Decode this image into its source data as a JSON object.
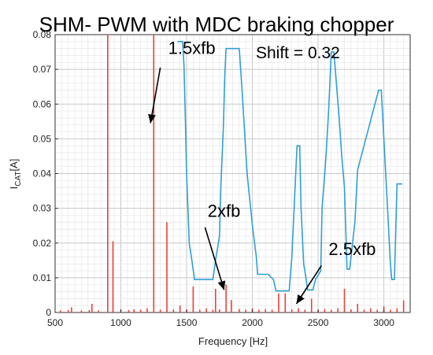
{
  "chart_data": {
    "type": "line",
    "title": "SHM- PWM with MDC braking chopper",
    "annotation_text": "Shift = 0.32",
    "xlabel": "Frequency [Hz]",
    "ylabel_main": "I",
    "ylabel_sub": "CAT",
    "ylabel_unit": "[A]",
    "xlim": [
      500,
      3200
    ],
    "ylim": [
      0,
      0.08
    ],
    "grid": true,
    "x_ticks": [
      500,
      1000,
      1500,
      2000,
      2500,
      3000
    ],
    "x_tick_labels": [
      "500",
      "1000",
      "1500",
      "2000",
      "2500",
      "3000"
    ],
    "y_ticks": [
      0,
      0.01,
      0.02,
      0.03,
      0.04,
      0.05,
      0.06,
      0.07,
      0.08
    ],
    "y_tick_labels": [
      "0",
      "0.01",
      "0.02",
      "0.03",
      "0.04",
      "0.05",
      "0.06",
      "0.07",
      "0.08"
    ],
    "colors": {
      "spectrum": "#e8413a",
      "limit": "#2f9fd6",
      "grid": "#d6d6d6",
      "arrow": "#000000"
    },
    "series": [
      {
        "kind": "spectrum_lines",
        "x": [
          540,
          600,
          625,
          700,
          760,
          780,
          830,
          900,
          940,
          1000,
          1060,
          1100,
          1150,
          1200,
          1250,
          1300,
          1350,
          1400,
          1450,
          1500,
          1550,
          1600,
          1650,
          1700,
          1720,
          1750,
          1800,
          1840,
          1900,
          1950,
          2000,
          2050,
          2100,
          2150,
          2200,
          2250,
          2300,
          2350,
          2400,
          2450,
          2500,
          2550,
          2600,
          2650,
          2700,
          2750,
          2800,
          2850,
          2900,
          2950,
          3000,
          3050,
          3100,
          3150
        ],
        "values": [
          0.0006,
          0.0007,
          0.0015,
          0.0006,
          0.0007,
          0.0025,
          0.0006,
          0.08,
          0.0205,
          0.0008,
          0.0007,
          0.0009,
          0.0008,
          0.0012,
          0.08,
          0.0008,
          0.026,
          0.0009,
          0.002,
          0.0009,
          0.0075,
          0.0008,
          0.0012,
          0.0008,
          0.0068,
          0.0009,
          0.008,
          0.0036,
          0.001,
          0.0008,
          0.0012,
          0.0008,
          0.001,
          0.0008,
          0.0055,
          0.0055,
          0.0009,
          0.0012,
          0.0008,
          0.004,
          0.0008,
          0.001,
          0.0008,
          0.0012,
          0.0068,
          0.0009,
          0.0025,
          0.0008,
          0.0012,
          0.0008,
          0.0018,
          0.0008,
          0.0012,
          0.0035
        ]
      },
      {
        "kind": "step_line",
        "x": [
          1430,
          1470,
          1480,
          1490,
          1500,
          1510,
          1520,
          1540,
          1560,
          1700,
          1720,
          1750,
          1760,
          1780,
          1790,
          1800,
          1900,
          1920,
          1960,
          2000,
          2030,
          2040,
          2050,
          2060,
          2080,
          2120,
          2160,
          2180,
          2280,
          2300,
          2340,
          2360,
          2370,
          2390,
          2410,
          2420,
          2460,
          2480,
          2520,
          2530,
          2560,
          2580,
          2600,
          2620,
          2660,
          2680,
          2700,
          2720,
          2740,
          2780,
          2800,
          2960,
          2980,
          3020,
          3050,
          3060,
          3080,
          3100,
          3140
        ],
        "values": [
          0.078,
          0.078,
          0.071,
          0.056,
          0.04,
          0.03,
          0.02,
          0.015,
          0.0095,
          0.0095,
          0.015,
          0.022,
          0.036,
          0.054,
          0.068,
          0.076,
          0.076,
          0.065,
          0.04,
          0.025,
          0.016,
          0.011,
          0.011,
          0.011,
          0.011,
          0.011,
          0.0095,
          0.0062,
          0.0062,
          0.016,
          0.048,
          0.048,
          0.03,
          0.014,
          0.0095,
          0.0065,
          0.0065,
          0.0095,
          0.012,
          0.03,
          0.045,
          0.058,
          0.075,
          0.075,
          0.056,
          0.045,
          0.036,
          0.0125,
          0.0125,
          0.026,
          0.041,
          0.064,
          0.064,
          0.036,
          0.014,
          0.0095,
          0.0095,
          0.037,
          0.037
        ]
      }
    ],
    "annotations": [
      {
        "text": "1.5xfb",
        "text_x": 1360,
        "text_y": 0.0745,
        "arrow_from": [
          1300,
          0.0705
        ],
        "arrow_to": [
          1225,
          0.0545
        ]
      },
      {
        "text": "2xfb",
        "text_x": 1660,
        "text_y": 0.0275,
        "arrow_from": [
          1640,
          0.0245
        ],
        "arrow_to": [
          1785,
          0.0065
        ]
      },
      {
        "text": "2.5xfb",
        "text_x": 2580,
        "text_y": 0.0165,
        "arrow_from": [
          2525,
          0.0135
        ],
        "arrow_to": [
          2335,
          0.0025
        ]
      }
    ]
  }
}
